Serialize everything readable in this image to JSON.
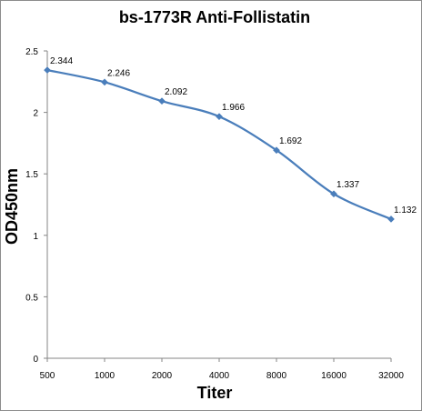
{
  "chart_data": {
    "type": "line",
    "title": "bs-1773R Anti-Follistatin",
    "xlabel": "Titer",
    "ylabel": "OD450nm",
    "categories": [
      "500",
      "1000",
      "2000",
      "4000",
      "8000",
      "16000",
      "32000"
    ],
    "series": [
      {
        "values": [
          2.344,
          2.246,
          2.092,
          1.966,
          1.692,
          1.337,
          1.132
        ],
        "labels": [
          "2.344",
          "2.246",
          "2.092",
          "1.966",
          "1.692",
          "1.337",
          "1.132"
        ]
      }
    ],
    "yticks": [
      "0",
      "0.5",
      "1",
      "1.5",
      "2",
      "2.5"
    ],
    "ylim": [
      0,
      2.5
    ],
    "grid": false,
    "legend": "none",
    "colors": {
      "series": "#4a7ebb",
      "axis": "#868686"
    }
  }
}
